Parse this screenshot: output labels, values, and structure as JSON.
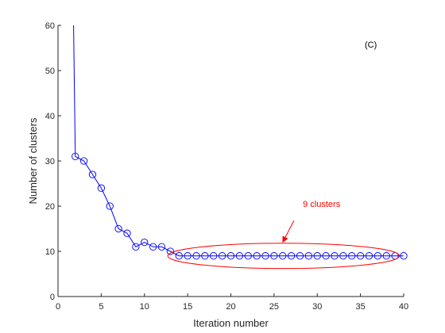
{
  "chart_data": {
    "type": "line",
    "panel_label": "(C)",
    "xlabel": "Iteration number",
    "ylabel": "Number of clusters",
    "xlim": [
      0,
      40
    ],
    "ylim": [
      0,
      60
    ],
    "x_ticks": [
      0,
      5,
      10,
      15,
      20,
      25,
      30,
      35,
      40
    ],
    "y_ticks": [
      0,
      10,
      20,
      30,
      40,
      50,
      60
    ],
    "grid": false,
    "series": [
      {
        "values": [
          [
            1.8,
            60
          ],
          [
            2,
            31
          ],
          [
            3,
            30
          ],
          [
            4,
            27
          ],
          [
            5,
            24
          ],
          [
            6,
            20
          ],
          [
            7,
            15
          ],
          [
            8,
            14
          ],
          [
            9,
            11
          ],
          [
            10,
            12
          ],
          [
            11,
            11
          ],
          [
            12,
            11
          ],
          [
            13,
            10
          ],
          [
            14,
            9
          ],
          [
            15,
            9
          ],
          [
            16,
            9
          ],
          [
            17,
            9
          ],
          [
            18,
            9
          ],
          [
            19,
            9
          ],
          [
            20,
            9
          ],
          [
            21,
            9
          ],
          [
            22,
            9
          ],
          [
            23,
            9
          ],
          [
            24,
            9
          ],
          [
            25,
            9
          ],
          [
            26,
            9
          ],
          [
            27,
            9
          ],
          [
            28,
            9
          ],
          [
            29,
            9
          ],
          [
            30,
            9
          ],
          [
            31,
            9
          ],
          [
            32,
            9
          ],
          [
            33,
            9
          ],
          [
            34,
            9
          ],
          [
            35,
            9
          ],
          [
            36,
            9
          ],
          [
            37,
            9
          ],
          [
            38,
            9
          ],
          [
            39,
            9
          ],
          [
            40,
            9
          ]
        ],
        "color": "#0000ff",
        "marker": "circle"
      }
    ],
    "annotation": {
      "text": "9 clusters",
      "color": "#ff0000",
      "text_position": [
        30.5,
        20.5
      ],
      "arrow_from": [
        27.3,
        16.8
      ],
      "arrow_to": [
        26.0,
        12.0
      ],
      "ellipse": {
        "cx": 26.1,
        "cy": 9,
        "rx": 13.4,
        "ry": 2.8
      }
    }
  }
}
